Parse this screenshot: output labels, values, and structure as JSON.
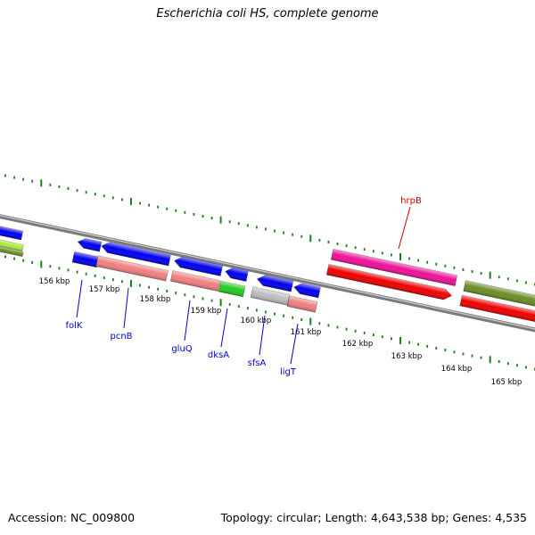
{
  "title": "Escherichia coli HS, complete genome",
  "footer": {
    "accession": "Accession: NC_009800",
    "summary": "Topology: circular; Length: 4,643,538 bp; Genes: 4,535"
  },
  "colors": {
    "backbone": "#7a7a7a",
    "tick": "#1a7f1a",
    "gene_label": "#0000cc",
    "highlight_label": "#cc0000",
    "blue": "#0000ee",
    "salmon": "#f08080",
    "green": "#22cc22",
    "gray": "#bdbdbd",
    "magenta": "#ee1199",
    "red": "#ee0000",
    "olive": "#6b8e23",
    "lime": "#aaee33"
  },
  "scale_labels": [
    "156 kbp",
    "157 kbp",
    "158 kbp",
    "159 kbp",
    "160 kbp",
    "161 kbp",
    "162 kbp",
    "163 kbp",
    "164 kbp",
    "165 kbp"
  ],
  "gene_labels": [
    "folK",
    "pcnB",
    "gluQ",
    "dksA",
    "sfsA",
    "ligT"
  ],
  "highlight_labels": [
    "hrpB"
  ]
}
